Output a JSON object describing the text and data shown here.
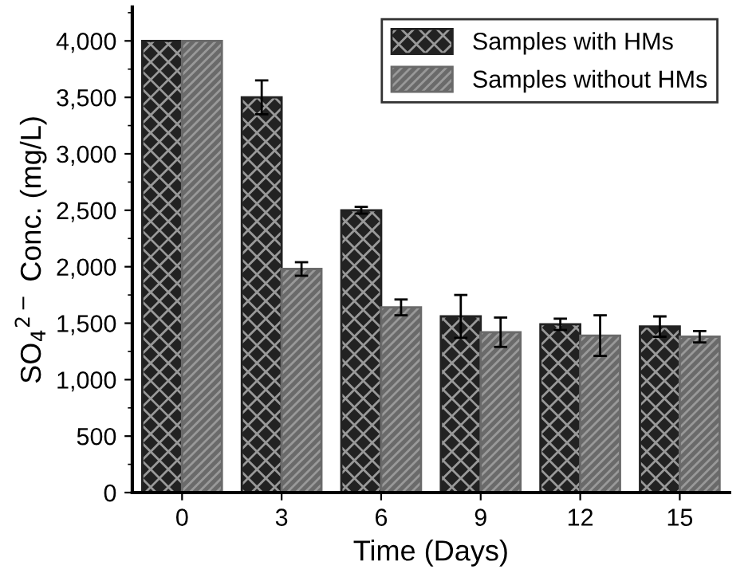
{
  "chart_data": {
    "type": "bar",
    "xlabel": "Time (Days)",
    "ylabel": "SO$_{4}$$^{2−}$ Conc. (mg/L)",
    "categories": [
      "0",
      "3",
      "6",
      "9",
      "12",
      "15"
    ],
    "series": [
      {
        "name": "Samples with HMs",
        "color": "#222222",
        "values": [
          4000,
          3500,
          2500,
          1560,
          1490,
          1470
        ],
        "errors": [
          null,
          150,
          30,
          190,
          50,
          90
        ]
      },
      {
        "name": "Samples without HMs",
        "color": "#6a6a6a",
        "values": [
          4000,
          1980,
          1640,
          1420,
          1390,
          1380
        ],
        "errors": [
          null,
          60,
          70,
          130,
          180,
          50
        ]
      }
    ],
    "ylim": [
      0,
      4300
    ],
    "yticks": [
      {
        "value": 0,
        "label": "0"
      },
      {
        "value": 500,
        "label": "500"
      },
      {
        "value": 1000,
        "label": "1,000"
      },
      {
        "value": 1500,
        "label": "1,500"
      },
      {
        "value": 2000,
        "label": "2,000"
      },
      {
        "value": 2500,
        "label": "2,500"
      },
      {
        "value": 3000,
        "label": "3,000"
      },
      {
        "value": 3500,
        "label": "3,500"
      },
      {
        "value": 4000,
        "label": "4,000"
      }
    ],
    "grid": false,
    "legend": "top right"
  }
}
